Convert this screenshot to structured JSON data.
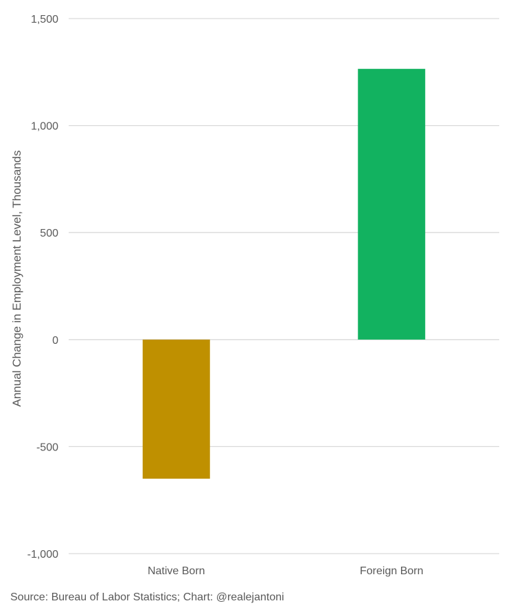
{
  "chart_data": {
    "type": "bar",
    "categories": [
      "Native Born",
      "Foreign Born"
    ],
    "values": [
      -650,
      1265
    ],
    "colors": [
      "#bf9000",
      "#12b260"
    ],
    "ylabel": "Annual Change in Employment Level, Thousands",
    "ylim": [
      -1000,
      1500
    ],
    "yticks": [
      -1000,
      -500,
      0,
      500,
      1000,
      1500
    ],
    "ytick_labels": [
      "-1,000",
      "-500",
      "0",
      "500",
      "1,000",
      "1,500"
    ],
    "grid": true,
    "gridline_color": "#d9d9d9",
    "legend": "none"
  },
  "footer": {
    "source": "Source: Bureau of Labor Statistics; Chart: @realejantoni"
  }
}
